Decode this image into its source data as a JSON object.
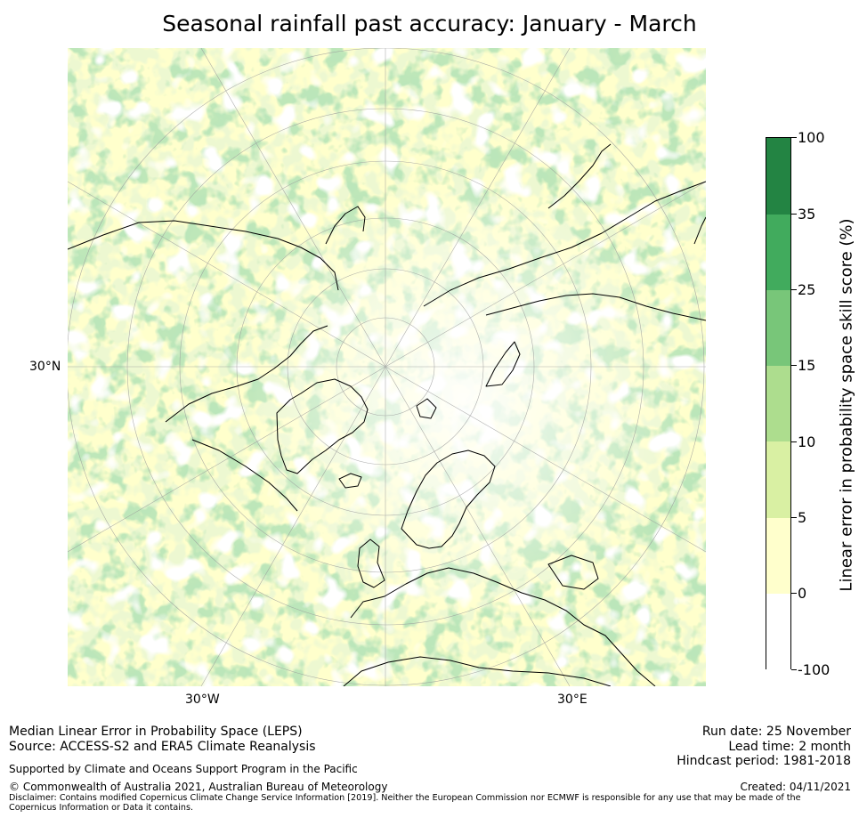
{
  "title": "Seasonal rainfall past accuracy: January - March",
  "map": {
    "projection": "north polar stereographic",
    "labels": {
      "lat_30n": "30°N",
      "lon_30w": "30°W",
      "lon_30e": "30°E"
    },
    "colors": {
      "ocean_bg": "#ffffff",
      "grid": "#9a9a9a",
      "coast": "#000000"
    }
  },
  "colorbar": {
    "title": "Linear error in probability space skill score (%)",
    "bins": [
      {
        "low": "-100",
        "high": "0",
        "color": "#ffffff"
      },
      {
        "low": "0",
        "high": "5",
        "color": "#ffffcc"
      },
      {
        "low": "5",
        "high": "10",
        "color": "#d9f0a3"
      },
      {
        "low": "10",
        "high": "15",
        "color": "#addd8e"
      },
      {
        "low": "15",
        "high": "25",
        "color": "#78c679"
      },
      {
        "low": "25",
        "high": "35",
        "color": "#41ab5d"
      },
      {
        "low": "35",
        "high": "100",
        "color": "#238443"
      }
    ],
    "tick_labels": [
      "-100",
      "0",
      "5",
      "10",
      "15",
      "25",
      "35",
      "100"
    ]
  },
  "footer": {
    "method": "Median Linear Error in Probability Space (LEPS)",
    "source": "Source: ACCESS-S2 and ERA5 Climate Reanalysis",
    "support": "Supported by Climate and Oceans Support Program in the Pacific",
    "copyright": "© Commonwealth of Australia 2021, Australian Bureau of Meteorology",
    "disclaimer": "Disclaimer: Contains modified Copernicus Climate Change Service Information [2019]. Neither the European Commission nor ECMWF is responsible for any use that may be made of the Copernicus Information or Data it contains.",
    "run_date": "Run date: 25 November",
    "lead_time": "Lead time: 2 month",
    "hindcast": "Hindcast period: 1981-2018",
    "created": "Created: 04/11/2021"
  }
}
